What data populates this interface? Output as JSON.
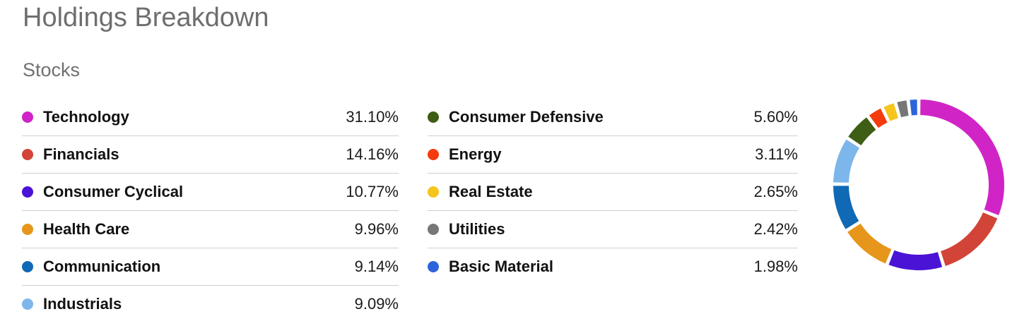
{
  "header": {
    "title": "Holdings Breakdown",
    "subtitle": "Stocks"
  },
  "chart_data": {
    "type": "pie",
    "variant": "donut",
    "categories": [
      "Technology",
      "Financials",
      "Consumer Cyclical",
      "Health Care",
      "Communication",
      "Industrials",
      "Consumer Defensive",
      "Energy",
      "Real Estate",
      "Utilities",
      "Basic Material"
    ],
    "values": [
      31.1,
      14.16,
      10.77,
      9.96,
      9.14,
      9.09,
      5.6,
      3.11,
      2.65,
      2.42,
      1.98
    ],
    "labels": [
      "31.10%",
      "14.16%",
      "10.77%",
      "9.96%",
      "9.14%",
      "9.09%",
      "5.60%",
      "3.11%",
      "2.65%",
      "2.42%",
      "1.98%"
    ],
    "colors": [
      "#d024c6",
      "#d24437",
      "#4a13d6",
      "#e6961b",
      "#0f69b4",
      "#7db6ea",
      "#3d5e14",
      "#f53b0d",
      "#f5c51d",
      "#777777",
      "#2d64dc"
    ],
    "legend": "left"
  }
}
